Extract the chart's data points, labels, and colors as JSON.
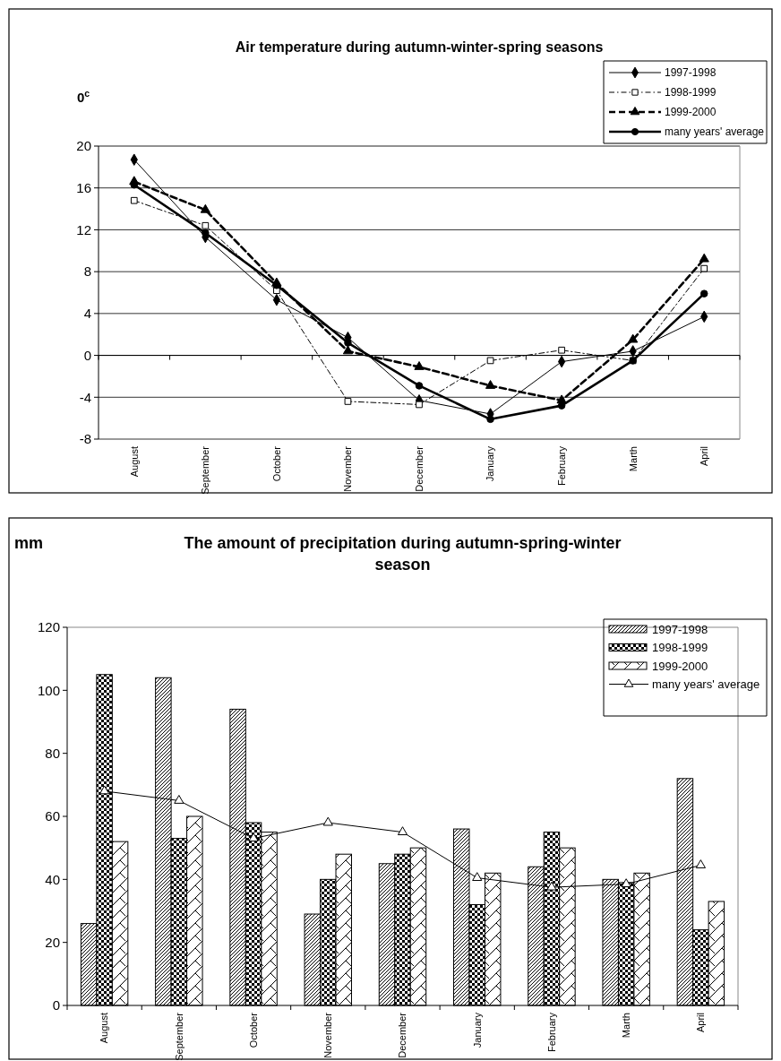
{
  "chart_data": [
    {
      "type": "line",
      "title": "Air temperature during autumn-winter-spring seasons",
      "ylabel": "0$^{c}$",
      "categories": [
        "August",
        "September",
        "October",
        "November",
        "December",
        "January",
        "February",
        "Marth",
        "April"
      ],
      "ylim": [
        -8,
        20
      ],
      "yticks": [
        -8,
        -4,
        0,
        4,
        8,
        12,
        16,
        20
      ],
      "grid": "y",
      "legend": "top right",
      "series": [
        {
          "name": "1997-1998",
          "color": "#000000",
          "marker": "diamond",
          "line_style": "solid",
          "values": [
            18.7,
            11.3,
            5.3,
            1.7,
            -4.3,
            -5.6,
            -0.6,
            0.4,
            3.7
          ]
        },
        {
          "name": "1998-1999",
          "color": "#000000",
          "marker": "square",
          "line_style": "dashed",
          "values": [
            14.8,
            12.4,
            6.2,
            -4.4,
            -4.7,
            -0.5,
            0.5,
            -0.5,
            8.3
          ]
        },
        {
          "name": "1999-2000",
          "color": "#000000",
          "marker": "triangle",
          "line_style": "dashed",
          "values": [
            16.6,
            13.9,
            6.9,
            0.4,
            -1.1,
            -2.9,
            -4.3,
            1.5,
            9.2
          ]
        },
        {
          "name": "many years' average",
          "color": "#000000",
          "marker": "circle",
          "line_style": "solid",
          "values": [
            16.3,
            11.7,
            6.7,
            1.2,
            -2.9,
            -6.1,
            -4.8,
            -0.5,
            5.9
          ]
        }
      ]
    },
    {
      "type": "bar",
      "title": "The amount of precipitation during autumn-spring-winter season",
      "ylabel": "mm",
      "categories": [
        "August",
        "September",
        "October",
        "November",
        "December",
        "January",
        "February",
        "Marth",
        "April"
      ],
      "ylim": [
        0,
        120
      ],
      "yticks": [
        0,
        20,
        40,
        60,
        80,
        100,
        120
      ],
      "legend": "top right",
      "series": [
        {
          "name": "1997-1998",
          "color": "#000000",
          "values": [
            26,
            104,
            94,
            29,
            45,
            56,
            44,
            40,
            72
          ]
        },
        {
          "name": "1998-1999",
          "color": "#000000",
          "values": [
            105,
            53,
            58,
            40,
            48,
            32,
            55,
            39,
            24
          ]
        },
        {
          "name": "1999-2000",
          "color": "#000000",
          "values": [
            52,
            60,
            55,
            48,
            50,
            42,
            50,
            42,
            33
          ]
        },
        {
          "name": "many years' average",
          "type": "line",
          "color": "#000000",
          "marker": "triangle",
          "line_style": "solid",
          "values": [
            68,
            65,
            53,
            58,
            55,
            40.5,
            37.5,
            38.5,
            44.5
          ]
        }
      ]
    }
  ]
}
